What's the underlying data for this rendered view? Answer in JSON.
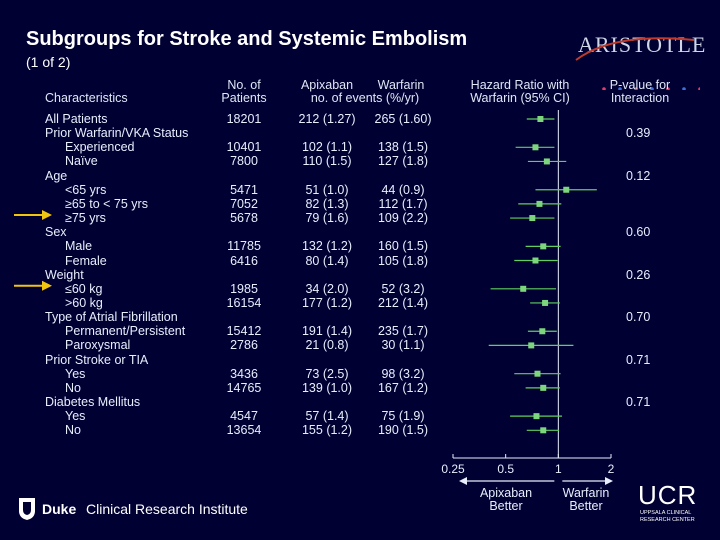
{
  "title": "Subgroups for Stroke and Systemic Embolism",
  "subtitle": "(1 of 2)",
  "logo": {
    "text": "ARISTOTLE"
  },
  "headers": {
    "characteristics": "Characteristics",
    "n_patients": [
      "No. of",
      "Patients"
    ],
    "apixaban": "Apixaban",
    "warfarin": "Warfarin",
    "events": "no. of events (%/yr)",
    "hazard": [
      "Hazard Ratio with",
      "Warfarin (95% CI)"
    ],
    "pvalue": [
      "P-value for",
      "Interaction"
    ]
  },
  "rows": [
    {
      "label": "All Patients",
      "indent": 0,
      "n": "18201",
      "apix": "212 (1.27)",
      "warf": "265 (1.60)",
      "p": ""
    },
    {
      "label": "Prior Warfarin/VKA Status",
      "indent": 0,
      "n": "",
      "apix": "",
      "warf": "",
      "p": "0.39"
    },
    {
      "label": "Experienced",
      "indent": 1,
      "n": "10401",
      "apix": "102 (1.1)",
      "warf": "138 (1.5)",
      "p": ""
    },
    {
      "label": "Naïve",
      "indent": 1,
      "n": "7800",
      "apix": "110 (1.5)",
      "warf": "127 (1.8)",
      "p": ""
    },
    {
      "label": "Age",
      "indent": 0,
      "n": "",
      "apix": "",
      "warf": "",
      "p": "0.12"
    },
    {
      "label": "<65 yrs",
      "indent": 1,
      "n": "5471",
      "apix": "51 (1.0)",
      "warf": "44 (0.9)",
      "p": ""
    },
    {
      "label": "≥65 to < 75 yrs",
      "indent": 1,
      "n": "7052",
      "apix": "82 (1.3)",
      "warf": "112 (1.7)",
      "p": ""
    },
    {
      "label": "≥75 yrs",
      "indent": 1,
      "n": "5678",
      "apix": "79 (1.6)",
      "warf": "109 (2.2)",
      "p": ""
    },
    {
      "label": "Sex",
      "indent": 0,
      "n": "",
      "apix": "",
      "warf": "",
      "p": "0.60"
    },
    {
      "label": "Male",
      "indent": 1,
      "n": "11785",
      "apix": "132 (1.2)",
      "warf": "160 (1.5)",
      "p": ""
    },
    {
      "label": "Female",
      "indent": 1,
      "n": "6416",
      "apix": "80 (1.4)",
      "warf": "105 (1.8)",
      "p": ""
    },
    {
      "label": "Weight",
      "indent": 0,
      "n": "",
      "apix": "",
      "warf": "",
      "p": "0.26"
    },
    {
      "label": "≤60 kg",
      "indent": 1,
      "n": "1985",
      "apix": "34 (2.0)",
      "warf": "52 (3.2)",
      "p": ""
    },
    {
      "label": ">60 kg",
      "indent": 1,
      "n": "16154",
      "apix": "177 (1.2)",
      "warf": "212 (1.4)",
      "p": ""
    },
    {
      "label": "Type of Atrial Fibrillation",
      "indent": 0,
      "n": "",
      "apix": "",
      "warf": "",
      "p": "0.70"
    },
    {
      "label": "Permanent/Persistent",
      "indent": 1,
      "n": "15412",
      "apix": "191 (1.4)",
      "warf": "235 (1.7)",
      "p": ""
    },
    {
      "label": "Paroxysmal",
      "indent": 1,
      "n": "2786",
      "apix": "21 (0.8)",
      "warf": "30 (1.1)",
      "p": ""
    },
    {
      "label": "Prior Stroke or TIA",
      "indent": 0,
      "n": "",
      "apix": "",
      "warf": "",
      "p": "0.71"
    },
    {
      "label": "Yes",
      "indent": 1,
      "n": "3436",
      "apix": "73 (2.5)",
      "warf": "98 (3.2)",
      "p": ""
    },
    {
      "label": "No",
      "indent": 1,
      "n": "14765",
      "apix": "139 (1.0)",
      "warf": "167 (1.2)",
      "p": ""
    },
    {
      "label": "Diabetes Mellitus",
      "indent": 0,
      "n": "",
      "apix": "",
      "warf": "",
      "p": "0.71"
    },
    {
      "label": "Yes",
      "indent": 1,
      "n": "4547",
      "apix": "57 (1.4)",
      "warf": "75 (1.9)",
      "p": ""
    },
    {
      "label": "No",
      "indent": 1,
      "n": "13654",
      "apix": "155 (1.2)",
      "warf": "190 (1.5)",
      "p": ""
    }
  ],
  "chart_data": {
    "type": "forest",
    "title": "Hazard Ratio with Warfarin (95% CI)",
    "xscale": "log2",
    "xlim": [
      0.25,
      2
    ],
    "xticks": [
      "0.25",
      "0.5",
      "1",
      "2"
    ],
    "xtick_values": [
      0.25,
      0.5,
      1,
      2
    ],
    "reference": 1,
    "left_label": [
      "Apixaban",
      "Better"
    ],
    "right_label": [
      "Warfarin",
      "Better"
    ],
    "points": [
      {
        "row": 0,
        "hr": 0.79,
        "lo": 0.66,
        "hi": 0.95
      },
      {
        "row": 2,
        "hr": 0.74,
        "lo": 0.57,
        "hi": 0.95
      },
      {
        "row": 3,
        "hr": 0.86,
        "lo": 0.67,
        "hi": 1.11
      },
      {
        "row": 5,
        "hr": 1.11,
        "lo": 0.74,
        "hi": 1.66
      },
      {
        "row": 6,
        "hr": 0.78,
        "lo": 0.59,
        "hi": 1.04
      },
      {
        "row": 7,
        "hr": 0.71,
        "lo": 0.53,
        "hi": 0.95
      },
      {
        "row": 9,
        "hr": 0.82,
        "lo": 0.65,
        "hi": 1.03
      },
      {
        "row": 10,
        "hr": 0.74,
        "lo": 0.56,
        "hi": 0.99
      },
      {
        "row": 12,
        "hr": 0.63,
        "lo": 0.41,
        "hi": 0.97
      },
      {
        "row": 13,
        "hr": 0.84,
        "lo": 0.69,
        "hi": 1.02
      },
      {
        "row": 15,
        "hr": 0.81,
        "lo": 0.67,
        "hi": 0.98
      },
      {
        "row": 16,
        "hr": 0.7,
        "lo": 0.4,
        "hi": 1.22
      },
      {
        "row": 18,
        "hr": 0.76,
        "lo": 0.56,
        "hi": 1.03
      },
      {
        "row": 19,
        "hr": 0.82,
        "lo": 0.65,
        "hi": 1.02
      },
      {
        "row": 21,
        "hr": 0.75,
        "lo": 0.53,
        "hi": 1.05
      },
      {
        "row": 22,
        "hr": 0.82,
        "lo": 0.66,
        "hi": 1.01
      }
    ],
    "colors": {
      "marker": "#7dd67d",
      "ci": "#5fcf5f",
      "axis": "#e8eefc"
    }
  },
  "arrows": [
    {
      "row": 7,
      "color": "#f1c40f"
    },
    {
      "row": 12,
      "color": "#f1c40f"
    }
  ],
  "footer": {
    "duke_bold": "Duke",
    "duke_rest": "Clinical Research Institute",
    "ucr_big": "UCR",
    "ucr_small": [
      "UPPSALA CLINICAL",
      "RESEARCH CENTER"
    ]
  }
}
